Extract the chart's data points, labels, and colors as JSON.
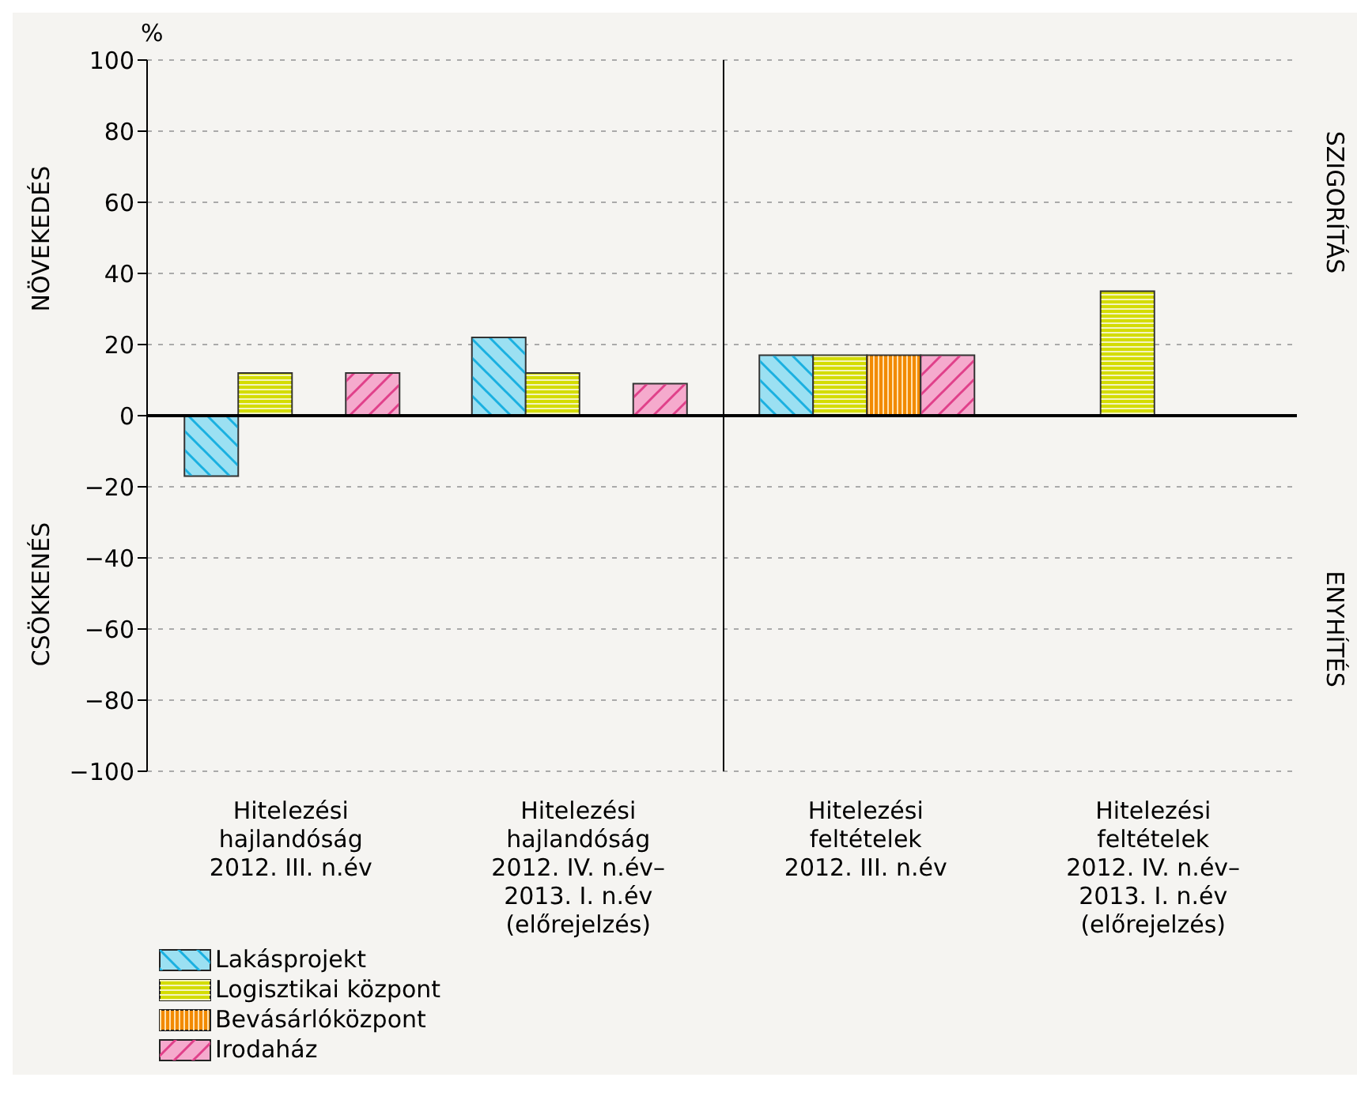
{
  "chart_data": {
    "type": "bar",
    "ylabel": "%",
    "categories": [
      "Hitelezési\nhajlandóság\n2012. III. n.év",
      "Hitelezési\nhajlandóság\n2012. IV. n.év–\n2013. I. n.év\n(előrejelzés)",
      "Hitelezési\nfeltételek\n2012. III. n.év",
      "Hitelezési\nfeltételek\n2012. IV. n.év–\n2013. I. n.év\n(előrejelzés)"
    ],
    "series": [
      {
        "name": "Lakásprojekt",
        "color": "#9be0f2",
        "values": [
          -17,
          22,
          17,
          null
        ]
      },
      {
        "name": "Logisztikai központ",
        "color": "#d4dc00",
        "values": [
          12,
          12,
          17,
          35
        ]
      },
      {
        "name": "Bevásárlóközpont",
        "color": "#f28a00",
        "values": [
          null,
          null,
          17,
          null
        ]
      },
      {
        "name": "Irodaház",
        "color": "#f5aacd",
        "values": [
          12,
          9,
          17,
          null
        ]
      }
    ],
    "ylim": [
      -100,
      100
    ],
    "yticks": [
      {
        "value": -100,
        "label": "−100"
      },
      {
        "value": -80,
        "label": "−80"
      },
      {
        "value": -60,
        "label": "−60"
      },
      {
        "value": -40,
        "label": "−40"
      },
      {
        "value": -20,
        "label": "−20"
      },
      0,
      20,
      40,
      60,
      80,
      100
    ],
    "grid": "y",
    "legend": "bottom left",
    "annotations": [
      "NÖVEKEDÉS",
      "CSÖKKENÉS",
      "SZIGORÍTÁS",
      "ENYHÍTÉS"
    ]
  }
}
